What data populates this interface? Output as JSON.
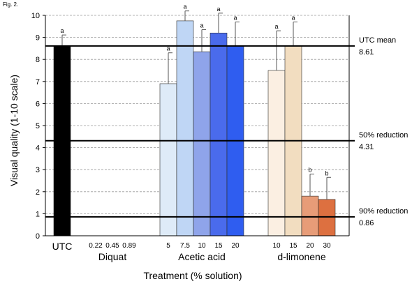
{
  "figure_label": "Fig. 2.",
  "chart_data": {
    "type": "bar",
    "xlabel": "Treatment (% solution)",
    "ylabel": "Visual quality (1-10 scale)",
    "ylim": [
      0,
      10
    ],
    "yticks": [
      0,
      1,
      2,
      3,
      4,
      5,
      6,
      7,
      8,
      9,
      10
    ],
    "grid": "horizontal dashed",
    "groups": [
      {
        "name": "UTC",
        "bars": [
          {
            "label": "",
            "value": 8.61,
            "error": 0.5,
            "sig": "a",
            "color": "#000000"
          }
        ]
      },
      {
        "name": "Diquat",
        "bars": [
          {
            "label": "0.22",
            "value": 0,
            "error": null,
            "sig": "",
            "color": "#ffffff"
          },
          {
            "label": "0.45",
            "value": 0,
            "error": null,
            "sig": "",
            "color": "#ffffff"
          },
          {
            "label": "0.89",
            "value": 0,
            "error": null,
            "sig": "",
            "color": "#ffffff"
          }
        ]
      },
      {
        "name": "Acetic acid",
        "bars": [
          {
            "label": "5",
            "value": 6.9,
            "error": 1.4,
            "sig": "a",
            "color": "#deebf8"
          },
          {
            "label": "7.5",
            "value": 9.75,
            "error": 0.45,
            "sig": "a",
            "color": "#bfd6f5"
          },
          {
            "label": "10",
            "value": 8.35,
            "error": 1.0,
            "sig": "a",
            "color": "#8fa4ea"
          },
          {
            "label": "15",
            "value": 9.2,
            "error": 0.9,
            "sig": "a",
            "color": "#4a6bec"
          },
          {
            "label": "20",
            "value": 8.6,
            "error": 1.1,
            "sig": "a",
            "color": "#2f5df0"
          }
        ]
      },
      {
        "name": "d-limonene",
        "bars": [
          {
            "label": "10",
            "value": 7.5,
            "error": 1.8,
            "sig": "a",
            "color": "#fbefe2"
          },
          {
            "label": "15",
            "value": 8.6,
            "error": 1.1,
            "sig": "a",
            "color": "#f2ddc0"
          },
          {
            "label": "20",
            "value": 1.8,
            "error": 1.0,
            "sig": "b",
            "color": "#e79c78"
          },
          {
            "label": "30",
            "value": 1.65,
            "error": 1.0,
            "sig": "b",
            "color": "#dd7040"
          }
        ]
      }
    ],
    "reference_lines": [
      {
        "value": 8.61,
        "label_line1": "UTC mean",
        "label_line2": "8.61"
      },
      {
        "value": 4.31,
        "label_line1": "50% reduction",
        "label_line2": "4.31"
      },
      {
        "value": 0.86,
        "label_line1": "90% reduction",
        "label_line2": "0.86"
      }
    ]
  }
}
